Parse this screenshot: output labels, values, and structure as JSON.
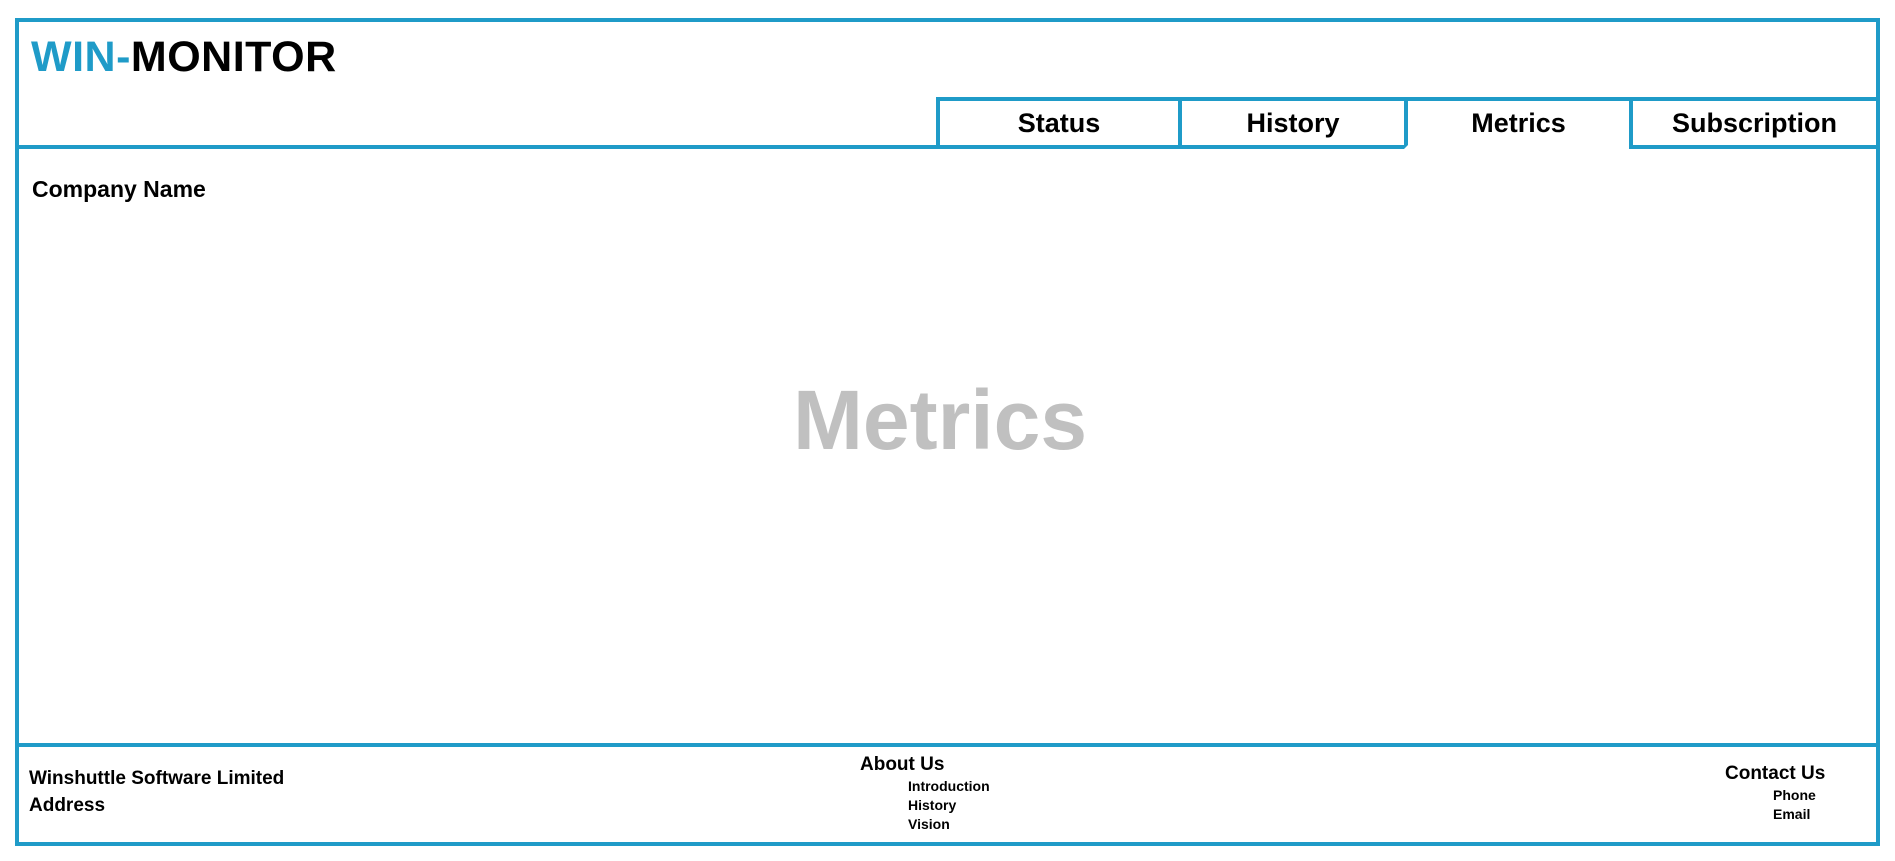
{
  "brand": {
    "prefix": "WIN-",
    "suffix": "MONITOR",
    "accent_color": "#1f9bc8"
  },
  "tabs": [
    {
      "label": "Status",
      "active": false
    },
    {
      "label": "History",
      "active": false
    },
    {
      "label": "Metrics",
      "active": true
    },
    {
      "label": "Subscription",
      "active": false
    }
  ],
  "main": {
    "company_name": "Company Name",
    "placeholder": "Metrics"
  },
  "footer": {
    "company": "Winshuttle Software Limited",
    "address": "Address",
    "about": {
      "title": "About Us",
      "links": [
        "Introduction",
        "History",
        "Vision"
      ]
    },
    "contact": {
      "title": "Contact Us",
      "links": [
        "Phone",
        "Email"
      ]
    }
  }
}
